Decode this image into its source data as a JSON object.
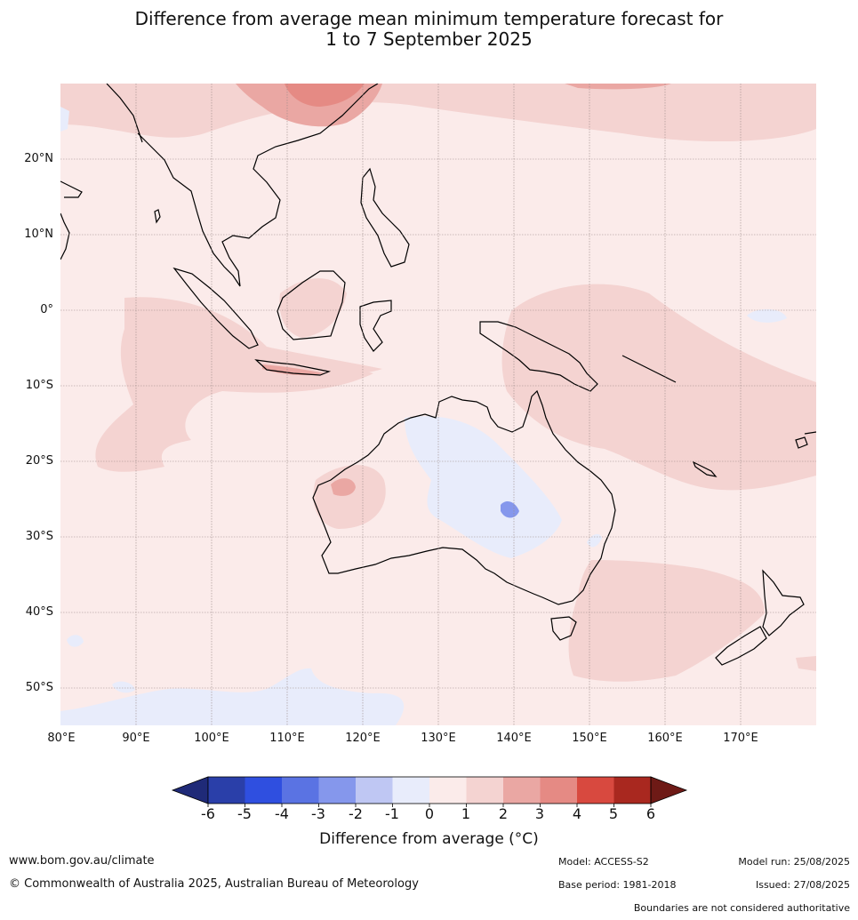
{
  "title": {
    "line1": "Difference from average mean minimum temperature forecast for",
    "line2": "1 to 7 September 2025"
  },
  "map": {
    "lon_range": [
      80,
      180
    ],
    "lat_range": [
      -55,
      30
    ],
    "lat_labels": [
      "20°N",
      "10°N",
      "0°",
      "10°S",
      "20°S",
      "30°S",
      "40°S",
      "50°S"
    ],
    "lon_labels": [
      "80°E",
      "90°E",
      "100°E",
      "110°E",
      "120°E",
      "130°E",
      "140°E",
      "150°E",
      "160°E",
      "170°E"
    ],
    "background_color": "#fbebea"
  },
  "colorbar": {
    "ticks": [
      "-6",
      "-5",
      "-4",
      "-3",
      "-2",
      "-1",
      "0",
      "1",
      "2",
      "3",
      "4",
      "5",
      "6"
    ],
    "colors": [
      "#2a3fa9",
      "#2f4fe0",
      "#5a73e3",
      "#8597ec",
      "#bfc7f3",
      "#e8ecfb",
      "#fbebea",
      "#f4d3d1",
      "#eaa7a3",
      "#e58a84",
      "#d8493f",
      "#a9281f"
    ],
    "under_color": "#1f2a78",
    "over_color": "#6e1a16",
    "label": "Difference from average (°C)"
  },
  "footer": {
    "website": "www.bom.gov.au/climate",
    "copyright": "© Commonwealth of Australia 2025, Australian Bureau of Meteorology",
    "model": "Model: ACCESS-S2",
    "base_period": "Base period: 1981-2018",
    "model_run": "Model run: 25/08/2025",
    "issued": "Issued: 27/08/2025",
    "boundaries": "Boundaries are not considered authoritative"
  }
}
